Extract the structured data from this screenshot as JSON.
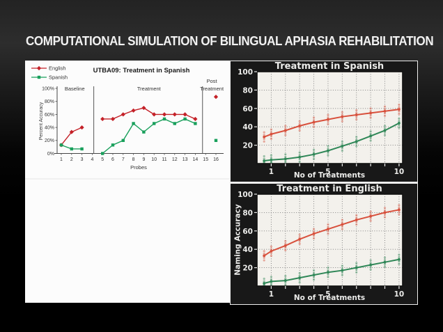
{
  "slide": {
    "title": "COMPUTATIONAL SIMULATION OF BILINGUAL APHASIA REHABILITATION"
  },
  "colors": {
    "slide_background": "#101010",
    "title_text": "#f2f2f2",
    "left_panel_bg": "#fcfcfc",
    "sim_panel_bg": "#181818",
    "sim_plot_bg": "#f3f1ec",
    "english_red": "#c42128",
    "spanish_green": "#1aa05c",
    "sim_red": "#d8503c",
    "sim_green": "#2f8757"
  },
  "chart_data": [
    {
      "id": "utba09",
      "type": "line",
      "title": "UTBA09: Treatment in Spanish",
      "xlabel": "Probes",
      "ylabel": "Percent Accuracy",
      "ylim": [
        0,
        100
      ],
      "yticks": [
        0,
        20,
        40,
        60,
        80,
        100
      ],
      "ytick_suffix": "%",
      "xticks": [
        1,
        2,
        3,
        4,
        5,
        6,
        7,
        8,
        9,
        10,
        11,
        12,
        13,
        14,
        15,
        16
      ],
      "grid": false,
      "legend_position": "top-left",
      "sections": [
        {
          "lines": [
            "Baseline"
          ],
          "cx": 2.3
        },
        {
          "lines": [
            "Treatment"
          ],
          "cx": 9.5
        },
        {
          "lines": [
            "Post",
            "Treatment"
          ],
          "cx": 15.6
        }
      ],
      "dividers": [
        4.15,
        14.7
      ],
      "series": [
        {
          "name": "English",
          "color": "#c42128",
          "marker": "diamond",
          "segments": [
            [
              [
                1,
                13
              ],
              [
                2,
                33
              ],
              [
                3,
                40
              ]
            ],
            [
              [
                5,
                53
              ],
              [
                6,
                53
              ],
              [
                7,
                60
              ],
              [
                8,
                66
              ],
              [
                9,
                70
              ],
              [
                10,
                60
              ],
              [
                11,
                60
              ],
              [
                12,
                60
              ],
              [
                13,
                60
              ],
              [
                14,
                53
              ]
            ]
          ],
          "post_treatment_point": [
            16,
            87
          ]
        },
        {
          "name": "Spanish",
          "color": "#1aa05c",
          "marker": "square",
          "segments": [
            [
              [
                1,
                13
              ],
              [
                2,
                7
              ],
              [
                3,
                7
              ]
            ],
            [
              [
                5,
                0
              ],
              [
                6,
                13
              ],
              [
                7,
                20
              ],
              [
                8,
                46
              ],
              [
                9,
                33
              ],
              [
                10,
                46
              ],
              [
                11,
                53
              ],
              [
                12,
                46
              ],
              [
                13,
                53
              ],
              [
                14,
                46
              ]
            ]
          ],
          "post_treatment_point": [
            16,
            20
          ]
        }
      ]
    },
    {
      "id": "simulation-spanish",
      "type": "line",
      "title": "Treatment in Spanish",
      "xlabel": "No of Treatments",
      "ylabel": "",
      "ylim": [
        0,
        100
      ],
      "xlim": [
        0,
        10.25
      ],
      "yticks": [
        20,
        40,
        60,
        80,
        100
      ],
      "xticks": [
        1,
        5,
        10
      ],
      "grid_x": [
        1,
        2,
        3,
        4,
        5,
        6,
        7,
        8,
        9,
        10
      ],
      "grid": true,
      "x": [
        0.5,
        1,
        2,
        3,
        4,
        5,
        6,
        7,
        8,
        9,
        10
      ],
      "series": [
        {
          "name": "English",
          "color": "#d8503c",
          "values": [
            29,
            32,
            36,
            41,
            45,
            48,
            51,
            53,
            55,
            57,
            59
          ]
        },
        {
          "name": "Spanish",
          "color": "#2f8757",
          "values": [
            3,
            4,
            5,
            7,
            10,
            14,
            19,
            24,
            30,
            36,
            44
          ]
        }
      ],
      "scatter_offsets": [
        -5,
        -2.2,
        2.2,
        5
      ]
    },
    {
      "id": "simulation-english",
      "type": "line",
      "title": "Treatment in English",
      "xlabel": "No of Treatments",
      "ylabel": "Naming Accuracy",
      "ylim": [
        0,
        100
      ],
      "xlim": [
        0,
        10.25
      ],
      "yticks": [
        20,
        40,
        60,
        80,
        100
      ],
      "xticks": [
        1,
        5,
        10
      ],
      "grid_x": [
        1,
        2,
        3,
        4,
        5,
        6,
        7,
        8,
        9,
        10
      ],
      "grid": true,
      "x": [
        0.5,
        1,
        2,
        3,
        4,
        5,
        6,
        7,
        8,
        9,
        10
      ],
      "series": [
        {
          "name": "English",
          "color": "#d8503c",
          "values": [
            33,
            38,
            44,
            51,
            57,
            62,
            67,
            72,
            76,
            80,
            83
          ]
        },
        {
          "name": "Spanish",
          "color": "#2f8757",
          "values": [
            3,
            5,
            6,
            9,
            12,
            15,
            17,
            20,
            23,
            26,
            29
          ]
        }
      ],
      "scatter_offsets": [
        -5,
        -2.2,
        2.2,
        5
      ]
    }
  ]
}
